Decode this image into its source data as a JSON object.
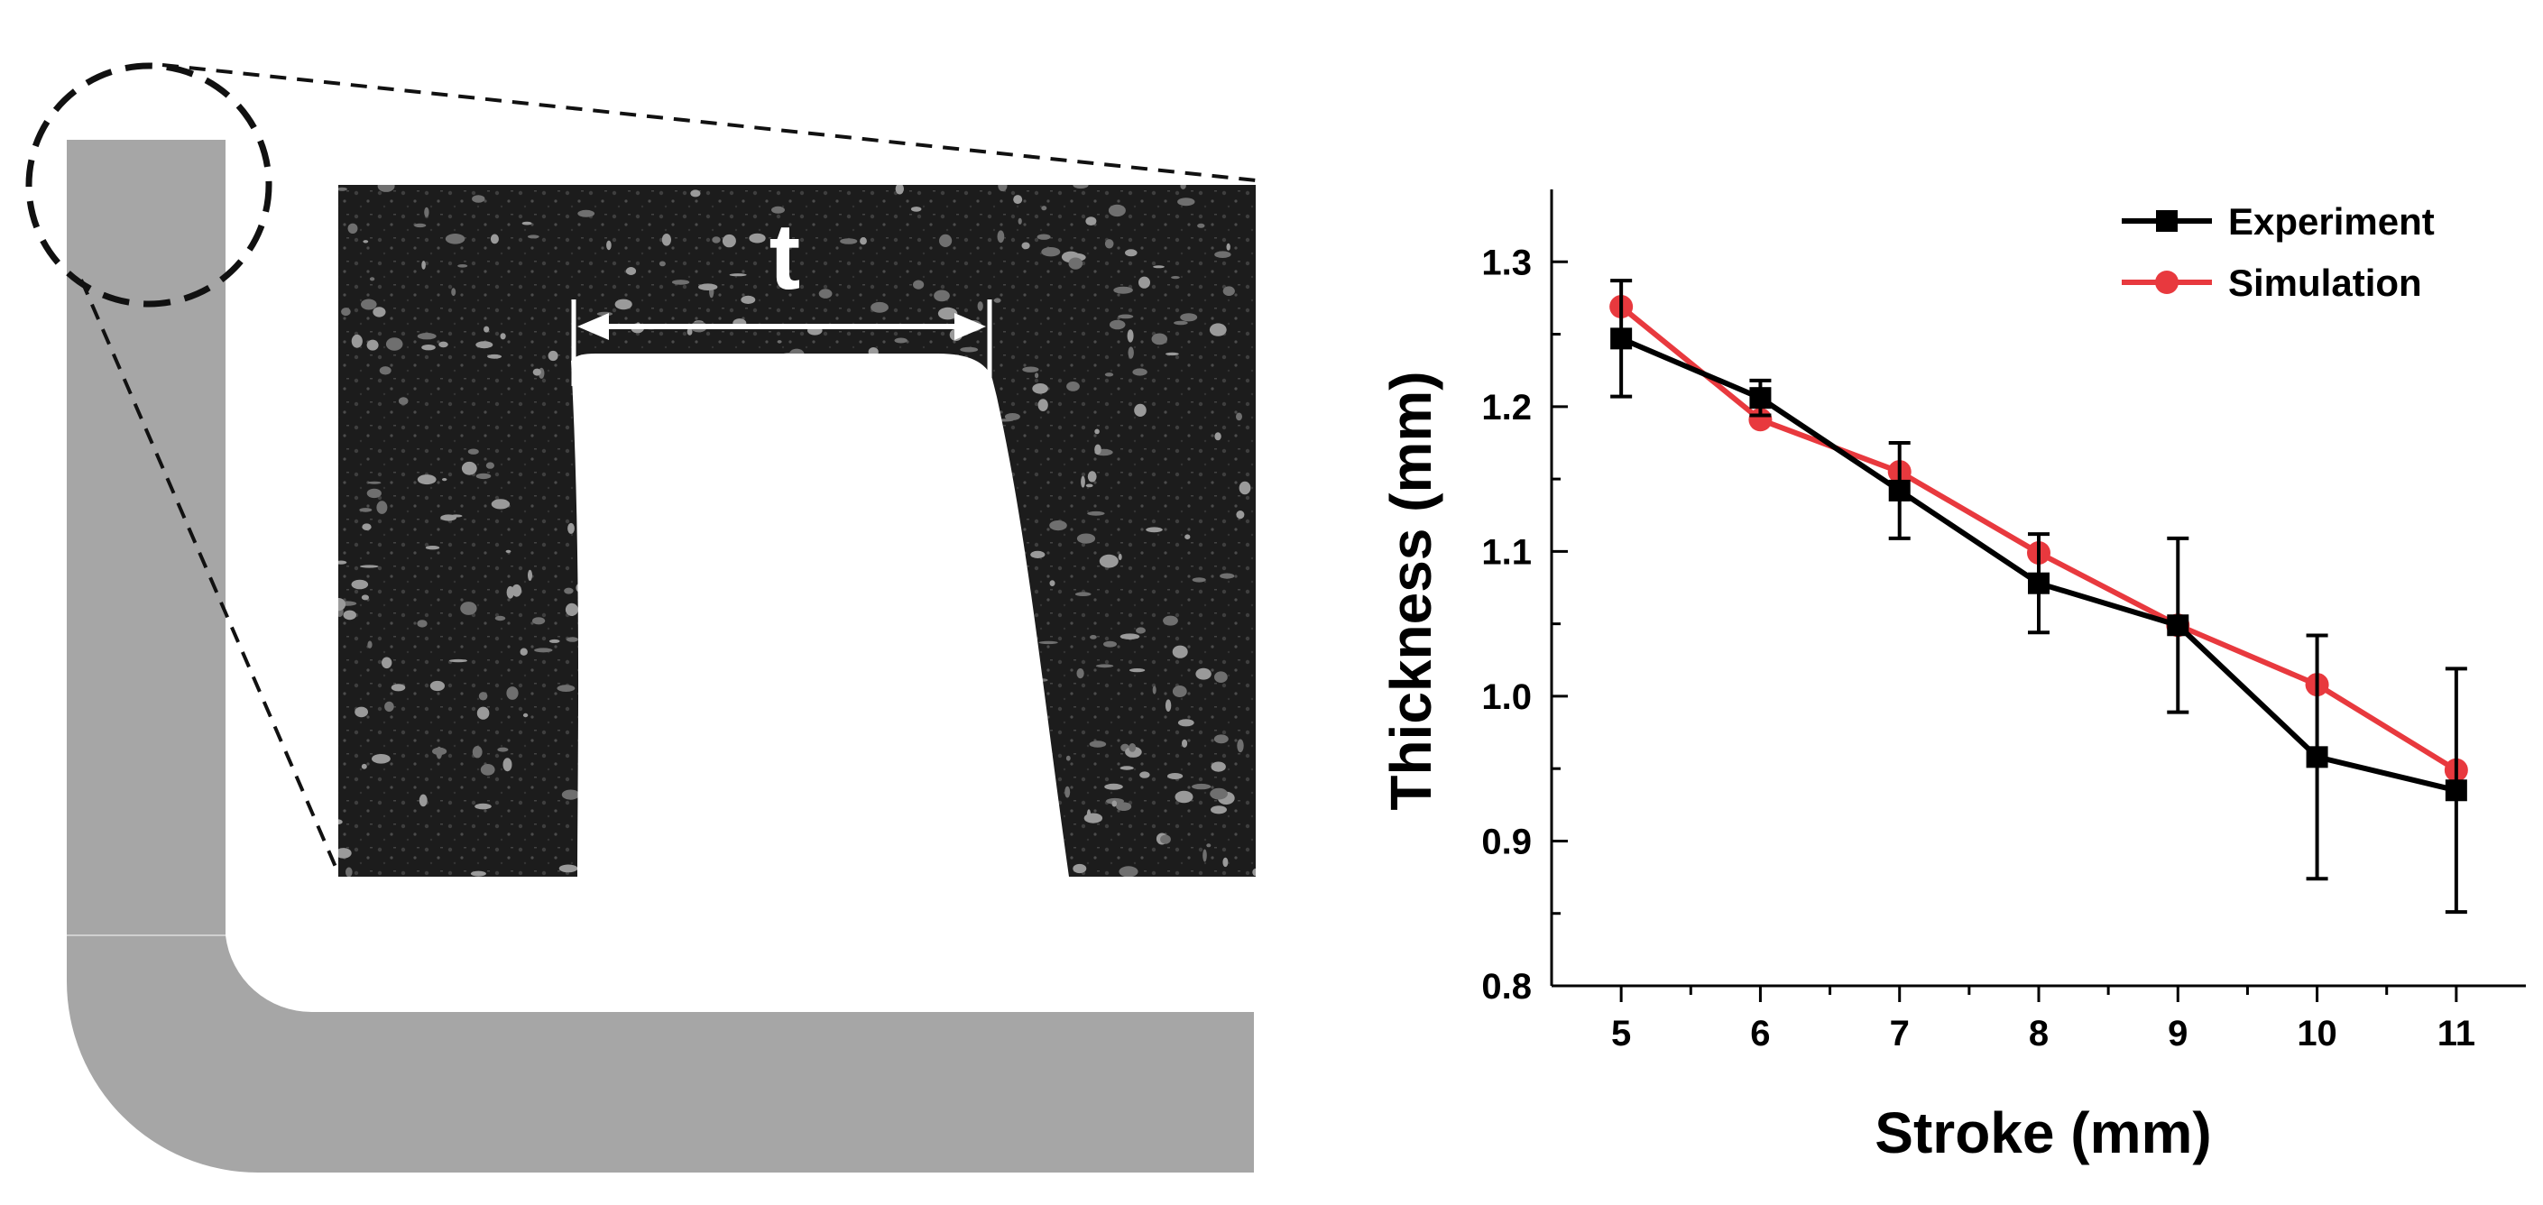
{
  "micrograph": {
    "thickness_symbol": "t"
  },
  "colors": {
    "part_gray": "#a6a6a6",
    "experiment": "#000000",
    "simulation": "#e8393e"
  },
  "chart_data": {
    "type": "line",
    "title": "",
    "xlabel": "Stroke (mm)",
    "ylabel": "Thickness (mm)",
    "xlim": [
      4.5,
      11.5
    ],
    "ylim": [
      0.8,
      1.35
    ],
    "xticks": [
      5,
      6,
      7,
      8,
      9,
      10,
      11
    ],
    "xtick_labels": [
      "5",
      "6",
      "7",
      "8",
      "9",
      "10",
      "11"
    ],
    "yticks": [
      0.8,
      0.9,
      1.0,
      1.1,
      1.2,
      1.3
    ],
    "ytick_labels": [
      "0.8",
      "0.9",
      "1.0",
      "1.1",
      "1.2",
      "1.3"
    ],
    "legend_position": "top-right",
    "x": [
      5,
      6,
      7,
      8,
      9,
      10,
      11
    ],
    "series": [
      {
        "name": "Experiment",
        "marker": "square",
        "color": "#000000",
        "values": [
          1.247,
          1.206,
          1.142,
          1.078,
          1.049,
          0.958,
          0.935
        ],
        "error": [
          0.04,
          0.012,
          0.033,
          0.034,
          0.06,
          0.084,
          0.084
        ]
      },
      {
        "name": "Simulation",
        "marker": "circle",
        "color": "#e8393e",
        "values": [
          1.269,
          1.191,
          1.155,
          1.099,
          1.049,
          1.008,
          0.949
        ]
      }
    ]
  }
}
